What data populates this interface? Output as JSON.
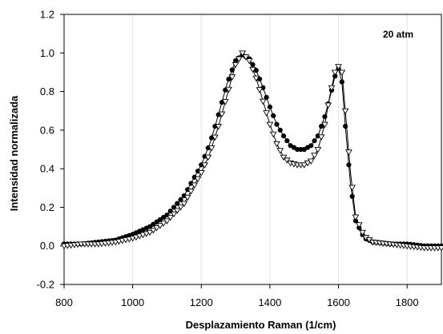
{
  "chart_data": {
    "type": "line",
    "title": "",
    "xlabel": "Desplazamiento Raman (1/cm)",
    "ylabel": "Intensidad normalizada",
    "xlim": [
      800,
      1900
    ],
    "ylim": [
      -0.2,
      1.2
    ],
    "xticks": [
      "800",
      "1000",
      "1200",
      "1400",
      "1600",
      "1800"
    ],
    "yticks": [
      "-0.2",
      "0.0",
      "0.2",
      "0.4",
      "0.6",
      "0.8",
      "1.0",
      "1.2"
    ],
    "grid": "vertical",
    "annotation": "20 atm",
    "series": [
      {
        "marker": "circle",
        "x": [
          800,
          850,
          900,
          950,
          1000,
          1050,
          1100,
          1150,
          1200,
          1225,
          1250,
          1275,
          1300,
          1320,
          1340,
          1360,
          1380,
          1400,
          1420,
          1440,
          1460,
          1480,
          1500,
          1520,
          1540,
          1560,
          1575,
          1590,
          1600,
          1610,
          1620,
          1635,
          1650,
          1675,
          1700,
          1750,
          1800,
          1850,
          1900
        ],
        "y": [
          0.01,
          0.01,
          0.02,
          0.03,
          0.06,
          0.1,
          0.16,
          0.26,
          0.42,
          0.53,
          0.68,
          0.84,
          0.96,
          0.99,
          0.97,
          0.91,
          0.82,
          0.72,
          0.63,
          0.57,
          0.52,
          0.5,
          0.5,
          0.52,
          0.57,
          0.67,
          0.77,
          0.88,
          0.92,
          0.85,
          0.62,
          0.32,
          0.13,
          0.04,
          0.02,
          0.01,
          0.01,
          0.0,
          0.0
        ]
      },
      {
        "marker": "triangle-down",
        "x": [
          800,
          850,
          900,
          950,
          1000,
          1050,
          1100,
          1150,
          1200,
          1225,
          1250,
          1275,
          1300,
          1320,
          1340,
          1360,
          1380,
          1400,
          1420,
          1440,
          1460,
          1480,
          1500,
          1520,
          1540,
          1560,
          1575,
          1590,
          1600,
          1610,
          1620,
          1635,
          1650,
          1675,
          1700,
          1750,
          1800,
          1850,
          1900
        ],
        "y": [
          0.0,
          0.01,
          0.01,
          0.02,
          0.04,
          0.07,
          0.13,
          0.22,
          0.38,
          0.48,
          0.62,
          0.78,
          0.94,
          1.0,
          0.96,
          0.87,
          0.75,
          0.63,
          0.53,
          0.46,
          0.43,
          0.42,
          0.42,
          0.44,
          0.5,
          0.63,
          0.78,
          0.9,
          0.93,
          0.9,
          0.7,
          0.38,
          0.15,
          0.05,
          0.02,
          0.01,
          0.0,
          -0.01,
          -0.01
        ]
      }
    ]
  }
}
